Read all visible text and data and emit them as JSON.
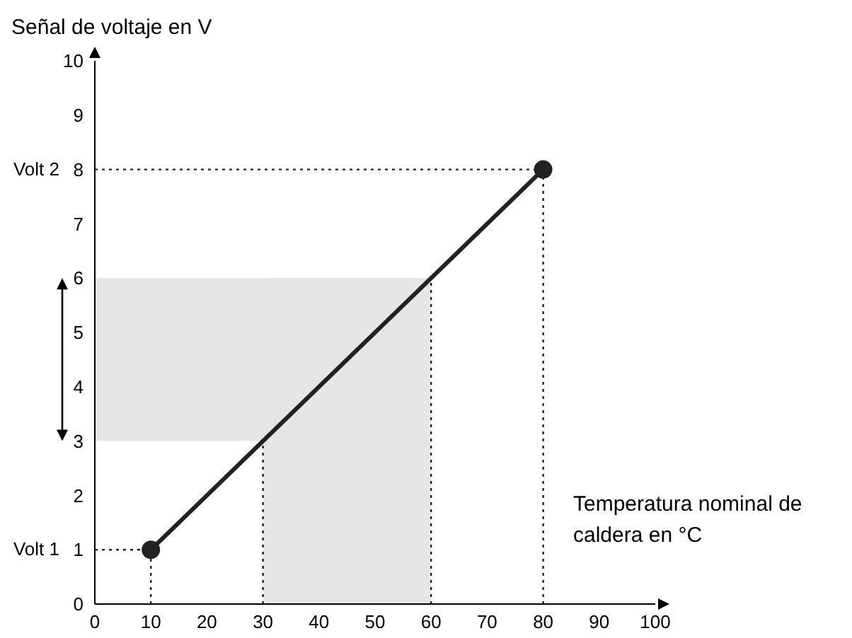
{
  "chart_data": {
    "type": "line",
    "ylabel": "Señal de voltaje en V",
    "xlabel": "Temperatura nominal de caldera en °C",
    "series": [
      {
        "x": [
          10,
          80
        ],
        "values": [
          1,
          8
        ],
        "color": "#222222"
      }
    ],
    "marker": "circle",
    "line_style": "solid",
    "xlim": [
      0,
      100
    ],
    "xticks": [
      0,
      10,
      20,
      30,
      40,
      50,
      60,
      70,
      80,
      90,
      100
    ],
    "ylim": [
      0,
      10
    ],
    "yticks": [
      0,
      1,
      2,
      3,
      4,
      5,
      6,
      7,
      8,
      9,
      10
    ],
    "ref_lines": [
      {
        "axis": "y",
        "value": 1,
        "label": "Volt 1",
        "line_style": "dotted",
        "color": "#222222"
      },
      {
        "axis": "y",
        "value": 8,
        "label": "Volt 2",
        "line_style": "dotted",
        "color": "#222222"
      },
      {
        "axis": "x",
        "value": 10,
        "line_style": "dotted",
        "color": "#222222"
      },
      {
        "axis": "x",
        "value": 80,
        "line_style": "dotted",
        "color": "#222222"
      },
      {
        "axis": "x",
        "value": 30,
        "line_style": "dotted",
        "color": "#222222"
      },
      {
        "axis": "x",
        "value": 60,
        "line_style": "dotted",
        "color": "#222222"
      }
    ],
    "bands": [
      {
        "axis": "y",
        "from": 3,
        "to": 6,
        "color": "#e6e6e6"
      },
      {
        "axis": "x",
        "from": 30,
        "to": 60,
        "color": "#e6e6e6"
      }
    ]
  }
}
